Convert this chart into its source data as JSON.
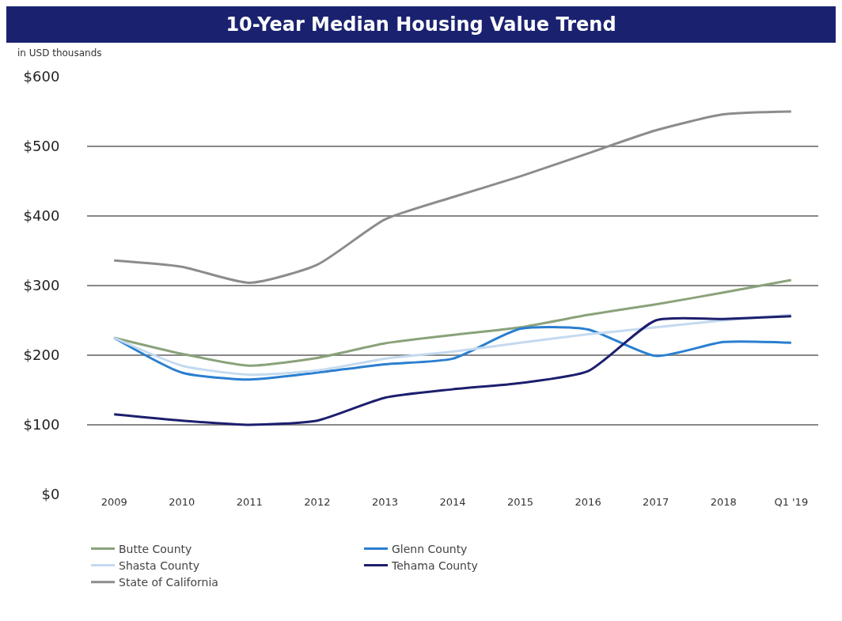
{
  "chart_data": {
    "type": "line",
    "title": "10-Year Median Housing Value Trend",
    "subtitle": "in USD thousands",
    "categories": [
      "2009",
      "2010",
      "2011",
      "2012",
      "2013",
      "2014",
      "2015",
      "2016",
      "2017",
      "2018",
      "Q1 '19"
    ],
    "series": [
      {
        "name": "Butte County",
        "color": "#8aa27a",
        "values": [
          225,
          202,
          185,
          196,
          217,
          229,
          240,
          258,
          273,
          290,
          308
        ]
      },
      {
        "name": "Glenn County",
        "color": "#2a7fd0",
        "values": [
          225,
          175,
          165,
          175,
          187,
          195,
          238,
          237,
          199,
          219,
          218
        ]
      },
      {
        "name": "Shasta County",
        "color": "#c4daf0",
        "values": [
          225,
          185,
          172,
          178,
          195,
          205,
          218,
          230,
          240,
          250,
          258
        ]
      },
      {
        "name": "Tehama County",
        "color": "#1c1f6e",
        "values": [
          115,
          106,
          100,
          106,
          139,
          151,
          160,
          177,
          250,
          252,
          256
        ]
      },
      {
        "name": "State of California",
        "color": "#8c8c8c",
        "values": [
          336,
          327,
          304,
          330,
          395,
          427,
          457,
          490,
          523,
          546,
          550
        ]
      }
    ],
    "ylim": [
      0,
      600
    ],
    "yticks": [
      {
        "value": 0,
        "label": "$0"
      },
      {
        "value": 100,
        "label": "$100"
      },
      {
        "value": 200,
        "label": "$200"
      },
      {
        "value": 300,
        "label": "$300"
      },
      {
        "value": 400,
        "label": "$400"
      },
      {
        "value": 500,
        "label": "$500"
      },
      {
        "value": 600,
        "label": "$600"
      }
    ],
    "grid": "y",
    "legend": "bottom",
    "marker": "none",
    "line_style": "solid"
  }
}
